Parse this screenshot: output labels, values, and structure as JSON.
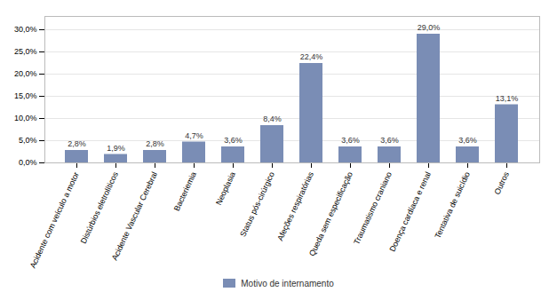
{
  "chart_data": {
    "type": "bar",
    "categories": [
      "Acidente com veículo a motor",
      "Distúrbios eletrolíticos",
      "Acidente Vascular Cerebral",
      "Bacteriemia",
      "Neoplasia",
      "Status pós-cirúrgico",
      "Afeções respiratórias",
      "Queda sem especificação",
      "Traumatismo craniano",
      "Doença cardíaca e renal",
      "Tentativa de suicídio",
      "Outros"
    ],
    "series": [
      {
        "name": "Motivo de internamento",
        "color": "#7a8db5",
        "values": [
          2.8,
          1.9,
          2.8,
          4.7,
          3.6,
          8.4,
          22.4,
          3.6,
          3.6,
          29.0,
          3.6,
          13.1
        ],
        "value_labels": [
          "2,8%",
          "1,9%",
          "2,8%",
          "4,7%",
          "3,6%",
          "8,4%",
          "22,4%",
          "3,6%",
          "3,6%",
          "29,0%",
          "3,6%",
          "13,1%"
        ]
      }
    ],
    "ylim": [
      0,
      33
    ],
    "yticks": [
      {
        "value": 0.0,
        "label": "0,0%"
      },
      {
        "value": 5.0,
        "label": "5,0%"
      },
      {
        "value": 10.0,
        "label": "10,0%"
      },
      {
        "value": 15.0,
        "label": "15,0%"
      },
      {
        "value": 20.0,
        "label": "20,0%"
      },
      {
        "value": 25.0,
        "label": "25,0%"
      },
      {
        "value": 30.0,
        "label": "30,0%"
      }
    ],
    "grid": true,
    "data_labels": true,
    "legend": "bottom"
  }
}
